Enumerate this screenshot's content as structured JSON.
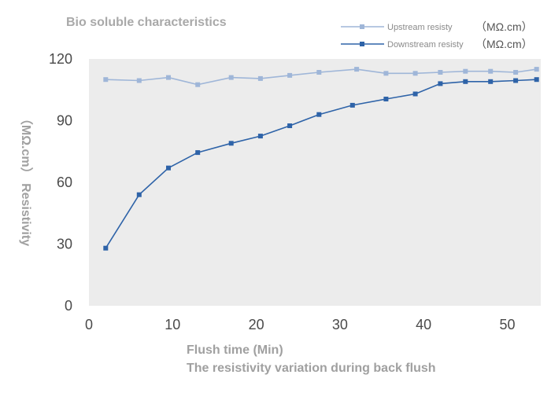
{
  "chart_data": {
    "type": "line",
    "title": "Bio soluble characteristics",
    "xlabel": "Flush time (Min)",
    "caption": "The resistivity variation during back flush",
    "ylabel": "（MΩ.cm） Resistivity",
    "xlim": [
      0,
      54
    ],
    "ylim": [
      0,
      120
    ],
    "xticks": [
      "0",
      "10",
      "20",
      "30",
      "40",
      "50"
    ],
    "yticks": [
      "0",
      "30",
      "60",
      "90",
      "120"
    ],
    "grid": false,
    "legend_position": "top-right",
    "series": [
      {
        "name": "Upstream resisty",
        "unit": "（MΩ.cm）",
        "color": "#9fb6d8",
        "x": [
          2,
          6,
          9.5,
          13,
          17,
          20.5,
          24,
          27.5,
          32,
          35.5,
          39,
          42,
          45,
          48,
          51,
          53.5
        ],
        "y": [
          110,
          109.5,
          111,
          107.5,
          111,
          110.5,
          112,
          113.5,
          115,
          113,
          113,
          113.5,
          114,
          114,
          113.5,
          115
        ]
      },
      {
        "name": "Downstream resisty",
        "unit": "（MΩ.cm）",
        "color": "#2e63a8",
        "x": [
          2,
          6,
          9.5,
          13,
          17,
          20.5,
          24,
          27.5,
          31.5,
          35.5,
          39,
          42,
          45,
          48,
          51,
          53.5
        ],
        "y": [
          28,
          54,
          67,
          74.5,
          79,
          82.5,
          87.5,
          93,
          97.5,
          100.5,
          103,
          108,
          109,
          109,
          109.5,
          110
        ]
      }
    ]
  }
}
